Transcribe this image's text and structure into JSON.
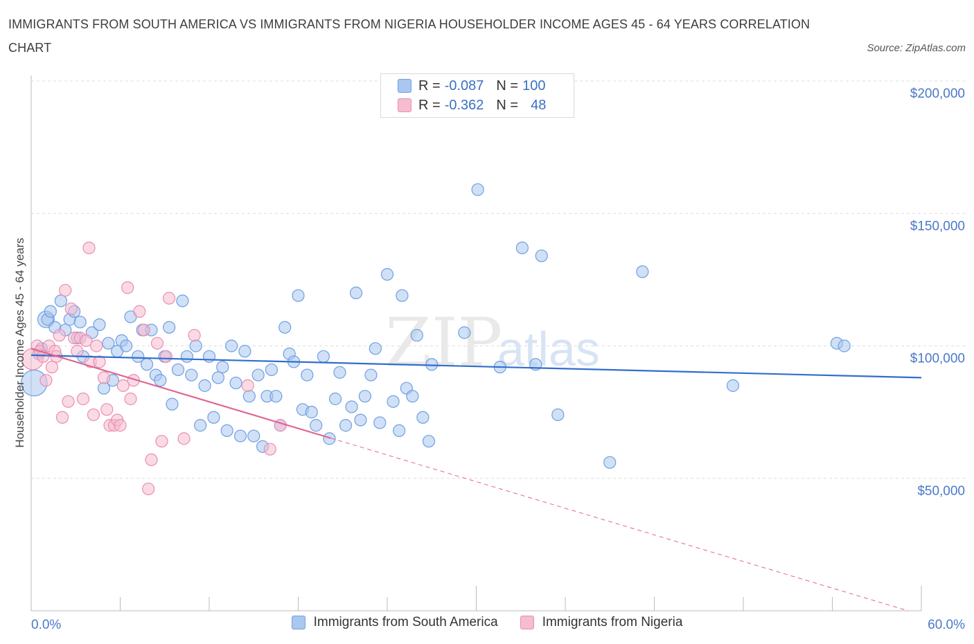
{
  "title": "IMMIGRANTS FROM SOUTH AMERICA VS IMMIGRANTS FROM NIGERIA HOUSEHOLDER INCOME AGES 45 - 64 YEARS CORRELATION CHART",
  "source": "Source: ZipAtlas.com",
  "watermark": {
    "zip": "ZIP",
    "atlas": "atlas"
  },
  "legend": {
    "r_label": "R =",
    "n_label": "N =",
    "rows": [
      {
        "r": "-0.087",
        "n": "100"
      },
      {
        "r": "-0.362",
        "n": "48"
      }
    ]
  },
  "colors": {
    "blue_fill": "#a9c7f0",
    "blue_stroke": "#6f9fe0",
    "blue_line": "#2f6ecc",
    "pink_fill": "#f6bcd0",
    "pink_stroke": "#ea8eaf",
    "pink_line": "#e0648f",
    "grid": "#dcdcdc",
    "tick_text": "#4a78c9"
  },
  "chart_data": {
    "type": "scatter",
    "title": "IMMIGRANTS FROM SOUTH AMERICA VS IMMIGRANTS FROM NIGERIA HOUSEHOLDER INCOME AGES 45 - 64 YEARS CORRELATION CHART",
    "xlabel": "",
    "ylabel": "Householder Income Ages 45 - 64 years",
    "xlim": [
      0,
      60
    ],
    "ylim": [
      0,
      200000
    ],
    "x_tick_labels": [
      "0.0%",
      "60.0%"
    ],
    "y_ticks": [
      50000,
      100000,
      150000,
      200000
    ],
    "y_tick_labels": [
      "$50,000",
      "$100,000",
      "$150,000",
      "$200,000"
    ],
    "grid": true,
    "legend_placement": "top-center",
    "series": [
      {
        "name": "Immigrants from South America",
        "trend": {
          "x": [
            0,
            60
          ],
          "y": [
            96500,
            88000
          ],
          "solid_to": 60
        },
        "points": [
          [
            0.2,
            86000,
            22
          ],
          [
            0.5,
            97000,
            10
          ],
          [
            0.7,
            99000,
            10
          ],
          [
            1.0,
            110000,
            14
          ],
          [
            1.1,
            110000,
            10
          ],
          [
            1.3,
            113000,
            10
          ],
          [
            1.6,
            107000,
            10
          ],
          [
            2.0,
            117000,
            10
          ],
          [
            2.3,
            106000,
            10
          ],
          [
            2.6,
            110000,
            10
          ],
          [
            2.9,
            113000,
            10
          ],
          [
            3.1,
            103000,
            10
          ],
          [
            3.3,
            109000,
            10
          ],
          [
            3.5,
            96000,
            10
          ],
          [
            4.1,
            105000,
            10
          ],
          [
            4.6,
            108000,
            10
          ],
          [
            4.9,
            84000,
            10
          ],
          [
            5.2,
            101000,
            10
          ],
          [
            5.5,
            87000,
            10
          ],
          [
            5.8,
            98000,
            10
          ],
          [
            6.1,
            102000,
            10
          ],
          [
            6.4,
            100000,
            10
          ],
          [
            6.7,
            111000,
            10
          ],
          [
            7.2,
            96000,
            10
          ],
          [
            7.5,
            106000,
            10
          ],
          [
            7.8,
            93000,
            10
          ],
          [
            8.1,
            106000,
            10
          ],
          [
            8.4,
            89000,
            10
          ],
          [
            8.7,
            87000,
            10
          ],
          [
            9.0,
            96000,
            10
          ],
          [
            9.3,
            107000,
            10
          ],
          [
            9.5,
            78000,
            10
          ],
          [
            9.9,
            91000,
            10
          ],
          [
            10.2,
            117000,
            10
          ],
          [
            10.5,
            96000,
            10
          ],
          [
            10.8,
            89000,
            10
          ],
          [
            11.1,
            100000,
            10
          ],
          [
            11.4,
            70000,
            10
          ],
          [
            11.7,
            85000,
            10
          ],
          [
            12.0,
            96000,
            10
          ],
          [
            12.3,
            73000,
            10
          ],
          [
            12.6,
            88000,
            10
          ],
          [
            12.9,
            92000,
            10
          ],
          [
            13.2,
            68000,
            10
          ],
          [
            13.5,
            100000,
            10
          ],
          [
            13.8,
            86000,
            10
          ],
          [
            14.1,
            66000,
            10
          ],
          [
            14.4,
            98000,
            10
          ],
          [
            14.7,
            81000,
            10
          ],
          [
            15.0,
            66000,
            10
          ],
          [
            15.3,
            89000,
            10
          ],
          [
            15.6,
            62000,
            10
          ],
          [
            15.9,
            81000,
            10
          ],
          [
            16.2,
            91000,
            10
          ],
          [
            16.5,
            81000,
            10
          ],
          [
            16.8,
            70000,
            10
          ],
          [
            17.1,
            107000,
            10
          ],
          [
            17.4,
            97000,
            10
          ],
          [
            17.7,
            94000,
            10
          ],
          [
            18.0,
            119000,
            10
          ],
          [
            18.3,
            76000,
            10
          ],
          [
            18.6,
            89000,
            10
          ],
          [
            18.9,
            75000,
            10
          ],
          [
            19.2,
            70000,
            10
          ],
          [
            19.7,
            96000,
            10
          ],
          [
            20.1,
            65000,
            10
          ],
          [
            20.5,
            80000,
            10
          ],
          [
            20.8,
            90000,
            10
          ],
          [
            21.2,
            70000,
            10
          ],
          [
            21.6,
            77000,
            10
          ],
          [
            21.9,
            120000,
            10
          ],
          [
            22.2,
            72000,
            10
          ],
          [
            22.5,
            81000,
            10
          ],
          [
            22.9,
            89000,
            10
          ],
          [
            23.2,
            99000,
            10
          ],
          [
            23.5,
            71000,
            10
          ],
          [
            24.0,
            127000,
            10
          ],
          [
            24.4,
            79000,
            10
          ],
          [
            24.8,
            68000,
            10
          ],
          [
            25.0,
            119000,
            10
          ],
          [
            25.3,
            84000,
            10
          ],
          [
            25.7,
            81000,
            10
          ],
          [
            26.0,
            104000,
            10
          ],
          [
            26.4,
            73000,
            10
          ],
          [
            26.8,
            64000,
            10
          ],
          [
            27.0,
            93000,
            10
          ],
          [
            29.2,
            105000,
            10
          ],
          [
            30.1,
            159000,
            10
          ],
          [
            31.6,
            92000,
            10
          ],
          [
            33.1,
            137000,
            10
          ],
          [
            34.0,
            93000,
            10
          ],
          [
            34.4,
            134000,
            10
          ],
          [
            35.5,
            74000,
            10
          ],
          [
            39.0,
            56000,
            10
          ],
          [
            41.2,
            128000,
            10
          ],
          [
            47.3,
            85000,
            10
          ],
          [
            54.3,
            101000,
            10
          ],
          [
            54.8,
            100000,
            10
          ]
        ]
      },
      {
        "name": "Immigrants from Nigeria",
        "trend": {
          "x": [
            0,
            60
          ],
          "y": [
            99000,
            -1500
          ],
          "solid_to": 20.2
        },
        "points": [
          [
            0.1,
            95000,
            18
          ],
          [
            0.4,
            100000,
            10
          ],
          [
            0.6,
            98000,
            10
          ],
          [
            0.8,
            96000,
            10
          ],
          [
            1.0,
            87000,
            10
          ],
          [
            1.2,
            100000,
            10
          ],
          [
            1.4,
            92000,
            10
          ],
          [
            1.6,
            98000,
            10
          ],
          [
            1.7,
            96000,
            10
          ],
          [
            1.9,
            104000,
            10
          ],
          [
            2.1,
            73000,
            10
          ],
          [
            2.3,
            121000,
            10
          ],
          [
            2.5,
            79000,
            10
          ],
          [
            2.7,
            114000,
            10
          ],
          [
            2.9,
            103000,
            10
          ],
          [
            3.1,
            98000,
            10
          ],
          [
            3.3,
            103000,
            10
          ],
          [
            3.5,
            80000,
            10
          ],
          [
            3.7,
            102000,
            10
          ],
          [
            3.9,
            137000,
            10
          ],
          [
            4.0,
            94000,
            10
          ],
          [
            4.2,
            74000,
            10
          ],
          [
            4.4,
            100000,
            10
          ],
          [
            4.6,
            94000,
            10
          ],
          [
            4.9,
            88000,
            10
          ],
          [
            5.1,
            76000,
            10
          ],
          [
            5.3,
            70000,
            10
          ],
          [
            5.6,
            70000,
            10
          ],
          [
            5.8,
            72000,
            10
          ],
          [
            6.0,
            70000,
            10
          ],
          [
            6.2,
            85000,
            10
          ],
          [
            6.5,
            122000,
            10
          ],
          [
            6.7,
            80000,
            10
          ],
          [
            6.9,
            87000,
            10
          ],
          [
            7.3,
            113000,
            10
          ],
          [
            7.6,
            106000,
            10
          ],
          [
            7.9,
            46000,
            10
          ],
          [
            8.1,
            57000,
            10
          ],
          [
            8.5,
            101000,
            10
          ],
          [
            8.8,
            64000,
            10
          ],
          [
            9.1,
            96000,
            10
          ],
          [
            9.3,
            118000,
            10
          ],
          [
            10.3,
            65000,
            10
          ],
          [
            11.0,
            104000,
            10
          ],
          [
            14.6,
            85000,
            10
          ],
          [
            16.1,
            61000,
            10
          ],
          [
            16.8,
            70000,
            10
          ]
        ]
      }
    ]
  }
}
